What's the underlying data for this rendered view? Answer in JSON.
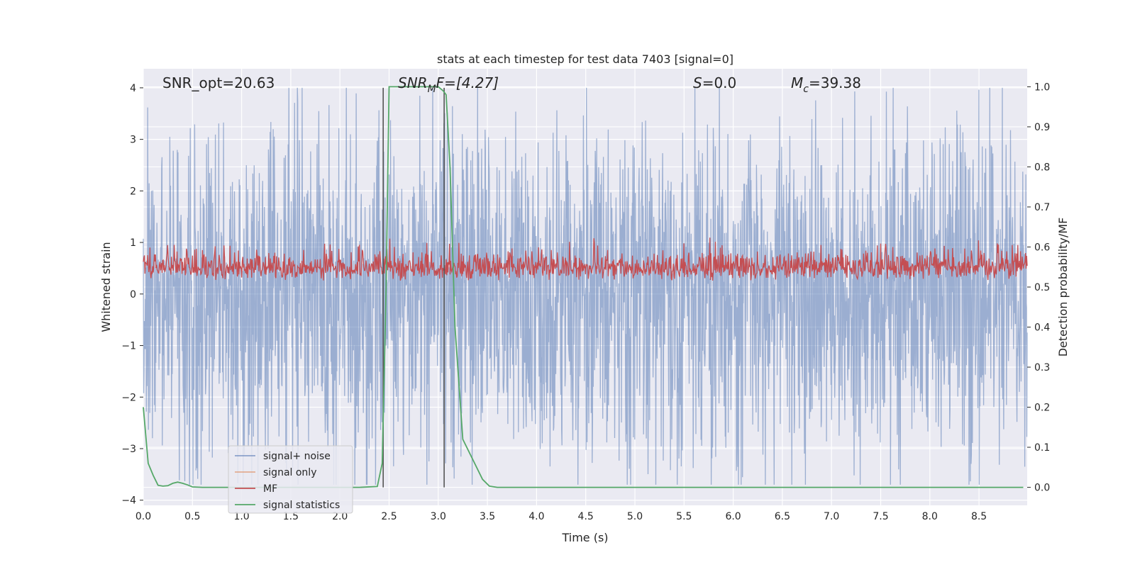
{
  "chart_data": {
    "type": "line",
    "title": "stats at each timestep for test data 7403 [signal=0]",
    "xlabel": "Time (s)",
    "ylabel_left": "Whitened strain",
    "ylabel_right": "Detection probability/MF",
    "xlim": [
      0.0,
      8.99
    ],
    "ylim_left": [
      -4.1,
      4.37
    ],
    "ylim_right": [
      -0.045,
      1.045
    ],
    "x_ticks": [
      "0.0",
      "0.5",
      "1.0",
      "1.5",
      "2.0",
      "2.5",
      "3.0",
      "3.5",
      "4.0",
      "4.5",
      "5.0",
      "5.5",
      "6.0",
      "6.5",
      "7.0",
      "7.5",
      "8.0",
      "8.5"
    ],
    "y_ticks_left": [
      "4",
      "3",
      "2",
      "1",
      "0",
      "−1",
      "−2",
      "−3",
      "−4"
    ],
    "y_ticks_right": [
      "1.0",
      "0.9",
      "0.8",
      "0.7",
      "0.6",
      "0.5",
      "0.4",
      "0.3",
      "0.2",
      "0.1",
      "0.0"
    ],
    "annotations": {
      "snr_opt": "SNR_opt=20.63",
      "snr_mf_main": "SNR",
      "snr_mf_sub": "M",
      "snr_mf_rest": "F=[4.27]",
      "s_main": "S",
      "s_rest": "=0.0",
      "mc_main": "M",
      "mc_sub": "c",
      "mc_rest": "=39.38"
    },
    "vertical_lines": [
      2.44,
      3.06
    ],
    "legend": [
      {
        "label": "signal+ noise",
        "color": "#4c72b0"
      },
      {
        "label": "signal only",
        "color": "#dd8452"
      },
      {
        "label": "MF",
        "color": "#c44e52"
      },
      {
        "label": "signal statistics",
        "color": "#55a868"
      }
    ],
    "series": [
      {
        "name": "signal+ noise",
        "axis": "left",
        "range": [
          -3.7,
          4.0
        ],
        "typical_amplitude": 2.2
      },
      {
        "name": "signal only",
        "axis": "left",
        "values": []
      },
      {
        "name": "MF",
        "axis": "right",
        "typical_range": [
          0.49,
          0.63
        ],
        "peak": 0.64
      },
      {
        "name": "signal statistics",
        "axis": "right",
        "x": [
          0.0,
          0.05,
          0.1,
          0.15,
          0.2,
          0.25,
          0.3,
          0.35,
          0.4,
          0.45,
          0.5,
          0.6,
          1.0,
          1.5,
          2.0,
          2.2,
          2.38,
          2.43,
          2.47,
          2.5,
          2.6,
          2.8,
          3.0,
          3.05,
          3.08,
          3.12,
          3.17,
          3.25,
          3.35,
          3.45,
          3.52,
          3.6,
          4.0,
          5.0,
          6.0,
          7.0,
          8.0,
          8.95
        ],
        "y": [
          0.2,
          0.06,
          0.03,
          0.005,
          0.003,
          0.004,
          0.01,
          0.013,
          0.01,
          0.006,
          0.001,
          0.0,
          0.0,
          0.0,
          0.0,
          0.0,
          0.002,
          0.06,
          0.5,
          1.0,
          1.0,
          1.0,
          1.0,
          0.99,
          0.98,
          0.8,
          0.4,
          0.12,
          0.07,
          0.02,
          0.003,
          0.0,
          0.0,
          0.0,
          0.0,
          0.0,
          0.0,
          0.0
        ]
      }
    ]
  }
}
